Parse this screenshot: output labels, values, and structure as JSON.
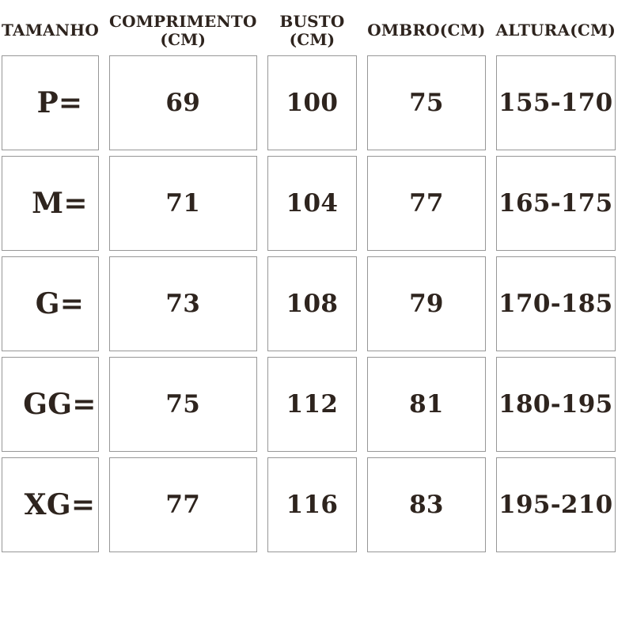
{
  "chart_data": {
    "type": "table",
    "columns": [
      "TAMANHO",
      "COMPRIMENTO (CM)",
      "BUSTO (CM)",
      "OMBRO(CM)",
      "ALTURA(CM)"
    ],
    "rows": [
      [
        "P=",
        "69",
        "100",
        "75",
        "155-170"
      ],
      [
        "M=",
        "71",
        "104",
        "77",
        "165-175"
      ],
      [
        "G=",
        "73",
        "108",
        "79",
        "170-185"
      ],
      [
        "GG=",
        "75",
        "112",
        "81",
        "180-195"
      ],
      [
        "XG=",
        "77",
        "116",
        "83",
        "195-210"
      ]
    ]
  },
  "theme": {
    "text_color": "#2e241e",
    "border_color": "#979797",
    "cell_background": "#ffffff",
    "page_background": "#ffffff"
  }
}
